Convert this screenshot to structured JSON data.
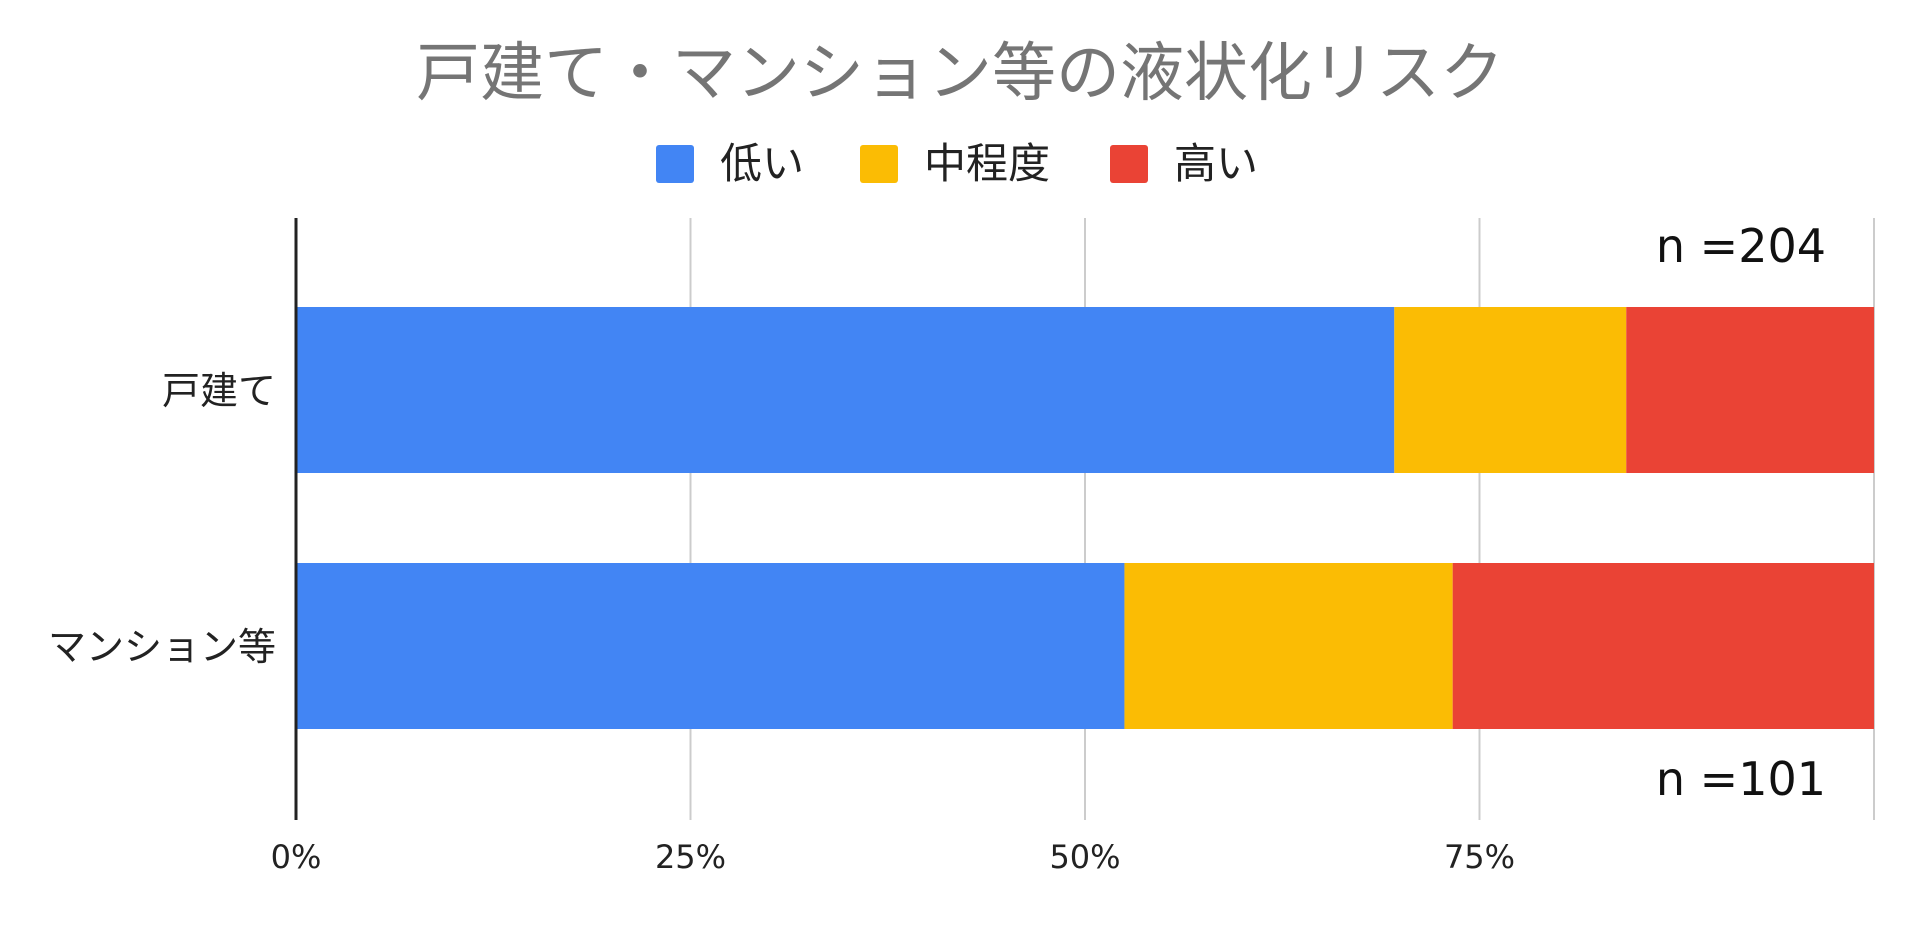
{
  "chart_data": {
    "type": "bar",
    "orientation": "horizontal",
    "stacked": "percent",
    "title": "戸建て・マンション等の液状化リスク",
    "categories": [
      "戸建て",
      "マンション等"
    ],
    "series": [
      {
        "name": "低い",
        "color": "#4285f4",
        "values": [
          69.6,
          52.5
        ]
      },
      {
        "name": "中程度",
        "color": "#fbbc04",
        "values": [
          14.7,
          20.8
        ]
      },
      {
        "name": "高い",
        "color": "#ea4335",
        "values": [
          15.7,
          26.7
        ]
      }
    ],
    "x_ticks": [
      "0%",
      "25%",
      "50%",
      "75%"
    ],
    "xlim": [
      0,
      100
    ],
    "grid": true,
    "legend_position": "top",
    "annotations": [
      {
        "text": "n =204",
        "category": "戸建て"
      },
      {
        "text": "n =101",
        "category": "マンション等"
      }
    ]
  }
}
